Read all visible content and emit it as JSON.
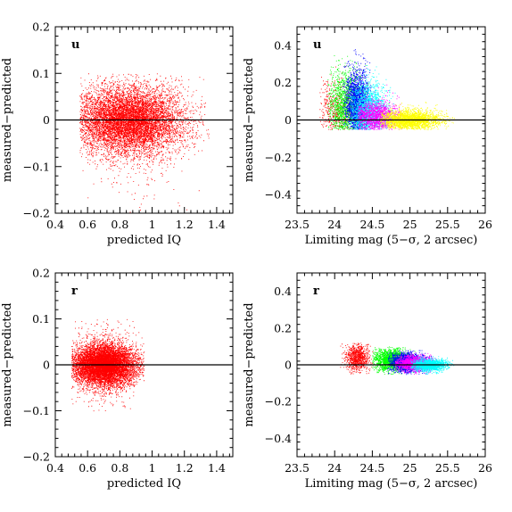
{
  "chart_data": [
    {
      "type": "scatter",
      "panel": "top-left",
      "band_label": "u",
      "xlabel": "predicted IQ",
      "ylabel": "measured−predicted",
      "xlim": [
        0.4,
        1.5
      ],
      "ylim": [
        -0.2,
        0.2
      ],
      "xticks": [
        0.4,
        0.6,
        0.8,
        1,
        1.2,
        1.4
      ],
      "xtick_labels": [
        "0.4",
        "0.6",
        "0.8",
        "1",
        "1.2",
        "1.4"
      ],
      "yticks": [
        -0.2,
        -0.1,
        0,
        0.1,
        0.2
      ],
      "ytick_labels": [
        "−0.2",
        "−0.1",
        "0",
        "0.1",
        "0.2"
      ],
      "reference_line_y": 0,
      "series": [
        {
          "color": "#ff0000",
          "x_center": 0.85,
          "x_spread": 0.17,
          "y_center": 0.0,
          "y_spread": 0.035,
          "x_range": [
            0.55,
            1.35
          ],
          "y_range": [
            -0.2,
            0.1
          ],
          "n_points": 9000
        }
      ]
    },
    {
      "type": "scatter",
      "panel": "top-right",
      "band_label": "u",
      "xlabel": "Limiting mag (5−σ, 2 arcsec)",
      "ylabel": "measured−predicted",
      "xlim": [
        23.5,
        26
      ],
      "ylim": [
        -0.5,
        0.5
      ],
      "xticks": [
        23.5,
        24,
        24.5,
        25,
        25.5,
        26
      ],
      "xtick_labels": [
        "23.5",
        "24",
        "24.5",
        "25",
        "25.5",
        "26"
      ],
      "yticks": [
        -0.4,
        -0.2,
        0,
        0.2,
        0.4
      ],
      "ytick_labels": [
        "−0.4",
        "−0.2",
        "0",
        "0.2",
        "0.4"
      ],
      "reference_line_y": 0,
      "series": [
        {
          "color": "#ff0000",
          "x_center": 24.0,
          "x_spread": 0.12,
          "y_center": 0.05,
          "y_spread": 0.08,
          "x_range": [
            23.8,
            24.3
          ],
          "y_range": [
            -0.05,
            0.3
          ],
          "n_points": 500
        },
        {
          "color": "#00ff00",
          "x_center": 24.15,
          "x_spread": 0.12,
          "y_center": 0.08,
          "y_spread": 0.09,
          "x_range": [
            23.9,
            24.45
          ],
          "y_range": [
            -0.05,
            0.35
          ],
          "n_points": 1600
        },
        {
          "color": "#0000ff",
          "x_center": 24.3,
          "x_spread": 0.08,
          "y_center": 0.08,
          "y_spread": 0.09,
          "x_range": [
            24.1,
            24.5
          ],
          "y_range": [
            -0.05,
            0.38
          ],
          "n_points": 2200
        },
        {
          "color": "#00ffff",
          "x_center": 24.45,
          "x_spread": 0.12,
          "y_center": 0.05,
          "y_spread": 0.07,
          "x_range": [
            24.2,
            24.8
          ],
          "y_range": [
            -0.05,
            0.3
          ],
          "n_points": 1800
        },
        {
          "color": "#ff00ff",
          "x_center": 24.55,
          "x_spread": 0.15,
          "y_center": 0.02,
          "y_spread": 0.04,
          "x_range": [
            24.3,
            24.9
          ],
          "y_range": [
            -0.05,
            0.2
          ],
          "n_points": 1600
        },
        {
          "color": "#ffff00",
          "x_center": 25.0,
          "x_spread": 0.2,
          "y_center": 0.0,
          "y_spread": 0.025,
          "x_range": [
            24.6,
            25.6
          ],
          "y_range": [
            -0.05,
            0.1
          ],
          "n_points": 2500
        }
      ]
    },
    {
      "type": "scatter",
      "panel": "bottom-left",
      "band_label": "r",
      "xlabel": "predicted IQ",
      "ylabel": "measured−predicted",
      "xlim": [
        0.4,
        1.5
      ],
      "ylim": [
        -0.2,
        0.2
      ],
      "xticks": [
        0.4,
        0.6,
        0.8,
        1,
        1.2,
        1.4
      ],
      "xtick_labels": [
        "0.4",
        "0.6",
        "0.8",
        "1",
        "1.2",
        "1.4"
      ],
      "yticks": [
        -0.2,
        -0.1,
        0,
        0.1,
        0.2
      ],
      "ytick_labels": [
        "−0.2",
        "−0.1",
        "0",
        "0.1",
        "0.2"
      ],
      "reference_line_y": 0,
      "series": [
        {
          "color": "#ff0000",
          "x_center": 0.7,
          "x_spread": 0.1,
          "y_center": 0.0,
          "y_spread": 0.022,
          "x_range": [
            0.5,
            0.95
          ],
          "y_range": [
            -0.1,
            0.1
          ],
          "n_points": 9000
        }
      ]
    },
    {
      "type": "scatter",
      "panel": "bottom-right",
      "band_label": "r",
      "xlabel": "Limiting mag (5−σ, 2 arcsec)",
      "ylabel": "measured−predicted",
      "xlim": [
        23.5,
        26
      ],
      "ylim": [
        -0.5,
        0.5
      ],
      "xticks": [
        23.5,
        24,
        24.5,
        25,
        25.5,
        26
      ],
      "xtick_labels": [
        "23.5",
        "24",
        "24.5",
        "25",
        "25.5",
        "26"
      ],
      "yticks": [
        -0.4,
        -0.2,
        0,
        0.2,
        0.4
      ],
      "ytick_labels": [
        "−0.4",
        "−0.2",
        "0",
        "0.2",
        "0.4"
      ],
      "reference_line_y": 0,
      "series": [
        {
          "color": "#ff0000",
          "x_center": 24.3,
          "x_spread": 0.08,
          "y_center": 0.04,
          "y_spread": 0.035,
          "x_range": [
            23.9,
            24.5
          ],
          "y_range": [
            -0.05,
            0.12
          ],
          "n_points": 900
        },
        {
          "color": "#00ff00",
          "x_center": 24.75,
          "x_spread": 0.12,
          "y_center": 0.03,
          "y_spread": 0.03,
          "x_range": [
            24.5,
            25.1
          ],
          "y_range": [
            -0.05,
            0.1
          ],
          "n_points": 1800
        },
        {
          "color": "#0000ff",
          "x_center": 24.95,
          "x_spread": 0.12,
          "y_center": 0.015,
          "y_spread": 0.025,
          "x_range": [
            24.7,
            25.3
          ],
          "y_range": [
            -0.05,
            0.08
          ],
          "n_points": 1800
        },
        {
          "color": "#ff00ff",
          "x_center": 25.05,
          "x_spread": 0.12,
          "y_center": 0.01,
          "y_spread": 0.02,
          "x_range": [
            24.8,
            25.35
          ],
          "y_range": [
            -0.05,
            0.07
          ],
          "n_points": 1500
        },
        {
          "color": "#00ffff",
          "x_center": 25.25,
          "x_spread": 0.12,
          "y_center": 0.0,
          "y_spread": 0.015,
          "x_range": [
            25.0,
            25.6
          ],
          "y_range": [
            -0.05,
            0.05
          ],
          "n_points": 1500
        }
      ]
    }
  ]
}
